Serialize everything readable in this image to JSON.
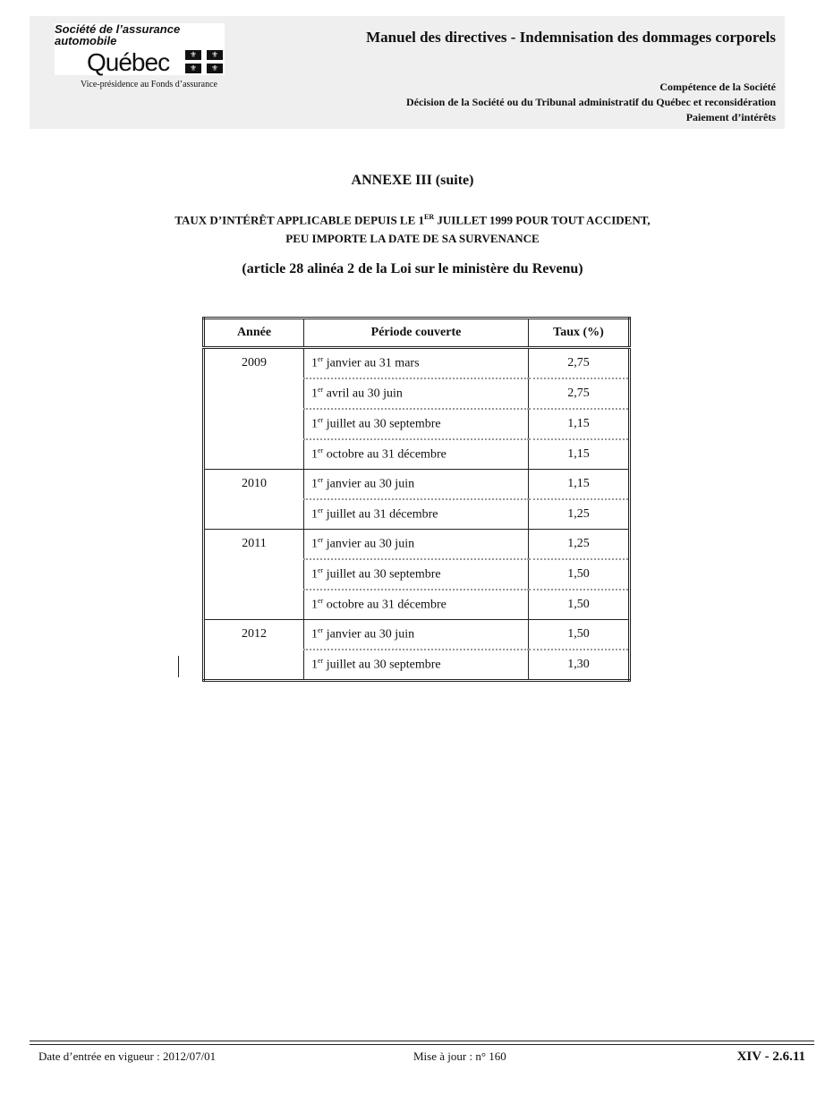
{
  "header": {
    "logo_line1": "Société de l’assurance",
    "logo_line2": "automobile",
    "logo_quebec": "Québec",
    "vice_presidence": "Vice-présidence au Fonds d’assurance",
    "title": "Manuel des directives - Indemnisation des dommages corporels",
    "sub": [
      "Compétence de la Société",
      "Décision de la Société ou du Tribunal administratif du Québec et reconsidération",
      "Paiement d’intérêts"
    ]
  },
  "doc": {
    "annexe": "ANNEXE III (suite)",
    "heading_a": "TAUX D’INTÉRÊT APPLICABLE DEPUIS LE 1",
    "heading_sup": "ER",
    "heading_b": " JUILLET 1999 POUR TOUT ACCIDENT,",
    "heading_line2": "PEU IMPORTE LA DATE DE SA SURVENANCE",
    "article": "(article 28 alinéa 2 de la Loi sur le ministère du Revenu)"
  },
  "table": {
    "headers": [
      "Année",
      "Période couverte",
      "Taux (%)"
    ],
    "groups": [
      {
        "year": "2009",
        "rows": [
          [
            "1",
            "er",
            " janvier au 31 mars",
            "2,75"
          ],
          [
            "1",
            "er",
            " avril au 30 juin",
            "2,75"
          ],
          [
            "1",
            "er",
            " juillet au 30 septembre",
            "1,15"
          ],
          [
            "1",
            "er",
            " octobre au 31 décembre",
            "1,15"
          ]
        ]
      },
      {
        "year": "2010",
        "rows": [
          [
            "1",
            "er",
            " janvier au 30 juin",
            "1,15"
          ],
          [
            "1",
            "er",
            " juillet au 31 décembre",
            "1,25"
          ]
        ]
      },
      {
        "year": "2011",
        "rows": [
          [
            "1",
            "er",
            " janvier au 30 juin",
            "1,25"
          ],
          [
            "1",
            "er",
            " juillet au 30 septembre",
            "1,50"
          ],
          [
            "1",
            "er",
            " octobre au 31 décembre",
            "1,50"
          ]
        ]
      },
      {
        "year": "2012",
        "rows": [
          [
            "1",
            "er",
            " janvier au 30 juin",
            "1,50"
          ],
          [
            "1",
            "er",
            " juillet au 30 septembre",
            "1,30"
          ]
        ]
      }
    ]
  },
  "footer": {
    "date": "Date d’entrée en vigueur : 2012/07/01",
    "update": "Mise à jour : n° 160",
    "page": "XIV - 2.6.11"
  }
}
